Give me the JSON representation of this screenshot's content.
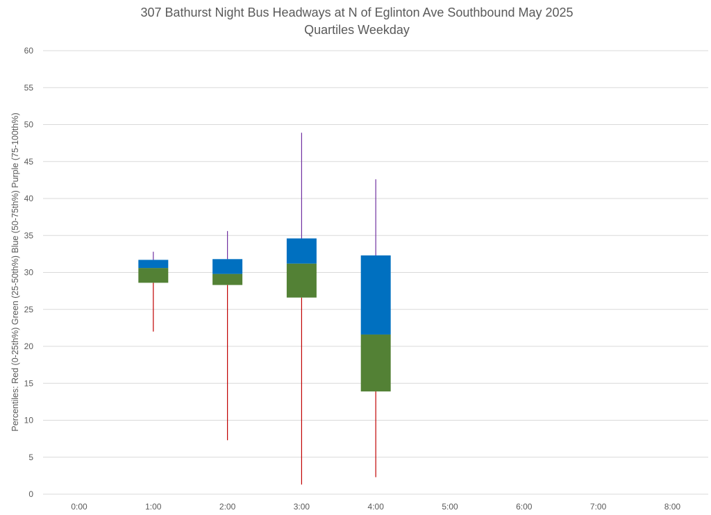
{
  "chart_data": {
    "type": "box",
    "title": "307 Bathurst Night Bus Headways at N of Eglinton Ave Southbound May 2025",
    "subtitle": "Quartiles Weekday",
    "xlabel": "",
    "ylabel": "Percentiles:  Red (0-25th%)  Green (25-50th%)  Blue (50-75th%)  Purple (75-100th%)",
    "ylim": [
      0,
      60
    ],
    "yticks": [
      0,
      5,
      10,
      15,
      20,
      25,
      30,
      35,
      40,
      45,
      50,
      55,
      60
    ],
    "categories": [
      "0:00",
      "1:00",
      "2:00",
      "3:00",
      "4:00",
      "5:00",
      "6:00",
      "7:00",
      "8:00"
    ],
    "series": [
      {
        "min": null,
        "q1": null,
        "median": null,
        "q3": null,
        "max": null
      },
      {
        "min": 22.0,
        "q1": 28.6,
        "median": 30.6,
        "q3": 31.7,
        "max": 32.8
      },
      {
        "min": 7.3,
        "q1": 28.3,
        "median": 29.8,
        "q3": 31.8,
        "max": 35.6
      },
      {
        "min": 1.3,
        "q1": 26.6,
        "median": 31.2,
        "q3": 34.6,
        "max": 48.9
      },
      {
        "min": 2.3,
        "q1": 13.9,
        "median": 21.6,
        "q3": 32.3,
        "max": 42.6
      },
      {
        "min": null,
        "q1": null,
        "median": null,
        "q3": null,
        "max": null
      },
      {
        "min": null,
        "q1": null,
        "median": null,
        "q3": null,
        "max": null
      },
      {
        "min": null,
        "q1": null,
        "median": null,
        "q3": null,
        "max": null
      },
      {
        "min": null,
        "q1": null,
        "median": null,
        "q3": null,
        "max": null
      }
    ],
    "grid": true,
    "legend": "none",
    "colors": {
      "lower_whisker": "#C00000",
      "lower_box": "#538135",
      "upper_box": "#0070C0",
      "upper_whisker": "#7030A0",
      "grid": "#D9D9D9",
      "text": "#595959"
    }
  }
}
